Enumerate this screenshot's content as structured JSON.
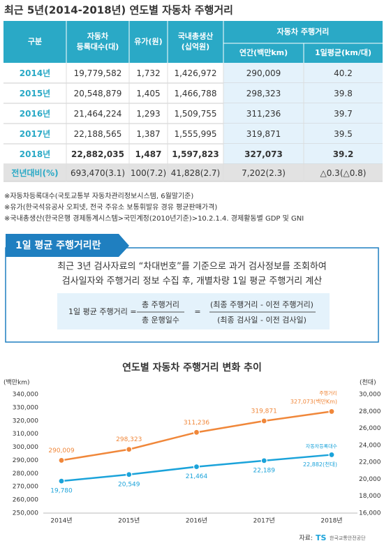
{
  "header": {
    "title": "최근 5년(2014-2018년) 연도별 자동차 주행거리"
  },
  "table": {
    "head": {
      "group": "구분",
      "cols": [
        [
          "자동차",
          "등록대수(대)"
        ],
        [
          "유가(원)"
        ],
        [
          "국내총생산",
          "(십억원)"
        ]
      ],
      "merged": "자동차 주행거리",
      "sub": [
        "연간(백만km)",
        "1일평균(km/대)"
      ]
    },
    "rows": [
      [
        "2014년",
        "19,779,582",
        "1,732",
        "1,426,972",
        "290,009",
        "40.2"
      ],
      [
        "2015년",
        "20,548,879",
        "1,405",
        "1,466,788",
        "298,323",
        "39.8"
      ],
      [
        "2016년",
        "21,464,224",
        "1,293",
        "1,509,755",
        "311,236",
        "39.7"
      ],
      [
        "2017년",
        "22,188,565",
        "1,387",
        "1,555,995",
        "319,871",
        "39.5"
      ],
      [
        "2018년",
        "22,882,035",
        "1,487",
        "1,597,823",
        "327,073",
        "39.2"
      ],
      [
        "전년대비(%)",
        "693,470(3.1)",
        "100(7.2)",
        "41,828(2.7)",
        "7,202(2.3)",
        "△0.3(△0.8)"
      ]
    ]
  },
  "notes": [
    "※자동차등록대수(국토교통부 자동차관리정보시스템, 6월말기준)",
    "※유가(한국석유공사 오피넷, 전국 주유소 보통휘발유 경유 평균판매가격)",
    "※국내총생산(한국은행 경제통계시스템>국민계정(2010년기준)>10.2.1.4. 경제활동별 GDP 및 GNI"
  ],
  "definition": {
    "tab": "1일 평균 주행거리란",
    "lines": [
      "최근 3년 검사자료의 “차대번호”를 기준으로 과거 검사정보를 조회하여",
      "검사일자와 주행거리 정보 수집 후, 개별차량 1일 평균 주행거리 계산"
    ],
    "formula": {
      "lhs": "1일 평균 주행거리 =",
      "num1": "총 주행거리",
      "den1": "총 운행일수",
      "eq": "=",
      "num2": "(최종 주행거리 - 이전 주행거리)",
      "den2": "(최종 검사일 - 이전 검사일)"
    }
  },
  "chart_data": {
    "type": "line",
    "title": "연도별 자동차 주행거리 변화 추이",
    "y_label": "(백만km)",
    "y2_label": "(천대)",
    "categories": [
      "2014년",
      "2015년",
      "2016년",
      "2017년",
      "2018년"
    ],
    "ylim": [
      250000,
      340000
    ],
    "yticks": [
      {
        "value": 250000,
        "label": "250,000"
      },
      {
        "value": 260000,
        "label": "260,000"
      },
      {
        "value": 270000,
        "label": "270,000"
      },
      {
        "value": 280000,
        "label": "280,000"
      },
      {
        "value": 290000,
        "label": "290,000"
      },
      {
        "value": 300000,
        "label": "300,000"
      },
      {
        "value": 310000,
        "label": "310,000"
      },
      {
        "value": 320000,
        "label": "320,000"
      },
      {
        "value": 330000,
        "label": "330,000"
      },
      {
        "value": 340000,
        "label": "340,000"
      }
    ],
    "y2lim": [
      16000,
      30000
    ],
    "y2ticks": [
      {
        "value": 16000,
        "label": "16,000"
      },
      {
        "value": 18000,
        "label": "18,000"
      },
      {
        "value": 20000,
        "label": "20,000"
      },
      {
        "value": 22000,
        "label": "22,000"
      },
      {
        "value": 24000,
        "label": "24,000"
      },
      {
        "value": 26000,
        "label": "26,000"
      },
      {
        "value": 28000,
        "label": "28,000"
      },
      {
        "value": 30000,
        "label": "30,000"
      }
    ],
    "grid": false,
    "series": [
      {
        "name": "주행거리",
        "color": "#f0873a",
        "values": [
          290009,
          298323,
          311236,
          319871,
          327073
        ],
        "value_labels": [
          "290,009",
          "298,323",
          "311,236",
          "319,871",
          "327,073(백만Km)"
        ]
      },
      {
        "name": "자동차등록대수",
        "color": "#1ba3da",
        "axis": "y2",
        "values": [
          19780,
          20549,
          21464,
          22189,
          22882
        ],
        "value_labels": [
          "19,780",
          "20,549",
          "21,464",
          "22,189",
          "22,882(천대)"
        ]
      }
    ],
    "source": {
      "label": "자료:",
      "logo": "TS",
      "org": "한국교통안전공단"
    }
  }
}
